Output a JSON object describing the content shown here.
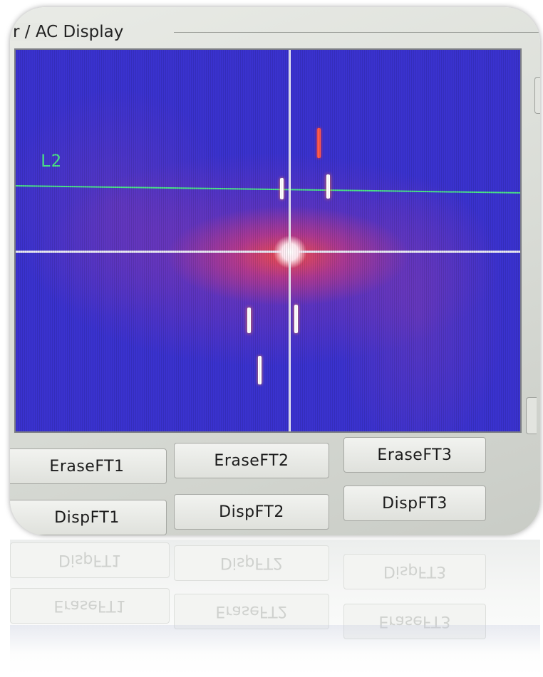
{
  "window": {
    "group_title": "r / AC Display"
  },
  "display": {
    "line_label": "L2"
  },
  "buttons": {
    "erase": [
      "EraseFT1",
      "EraseFT2",
      "EraseFT3"
    ],
    "disp": [
      "DispFT1",
      "DispFT2",
      "DispFT3"
    ]
  },
  "colors": {
    "background": "#3a32cf",
    "crosshair": "#e9e9f4",
    "line": "#4be38a",
    "hotspot": "#ff5040"
  }
}
